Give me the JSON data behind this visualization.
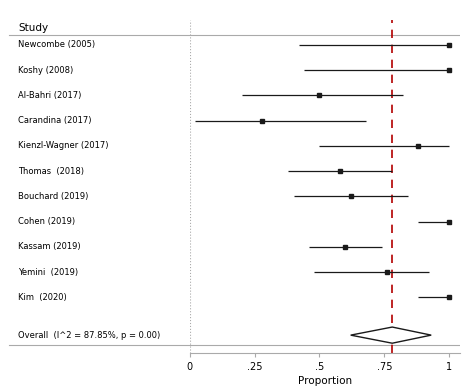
{
  "studies": [
    {
      "label": "Newcombe (2005)",
      "est": 1.0,
      "ci_low": 0.42,
      "ci_high": 1.0
    },
    {
      "label": "Koshy (2008)",
      "est": 1.0,
      "ci_low": 0.44,
      "ci_high": 1.0
    },
    {
      "label": "Al-Bahri (2017)",
      "est": 0.5,
      "ci_low": 0.2,
      "ci_high": 0.82
    },
    {
      "label": "Carandina (2017)",
      "est": 0.28,
      "ci_low": 0.02,
      "ci_high": 0.68
    },
    {
      "label": "Kienzl-Wagner (2017)",
      "est": 0.88,
      "ci_low": 0.5,
      "ci_high": 1.0
    },
    {
      "label": "Thomas  (2018)",
      "est": 0.58,
      "ci_low": 0.38,
      "ci_high": 0.78
    },
    {
      "label": "Bouchard (2019)",
      "est": 0.62,
      "ci_low": 0.4,
      "ci_high": 0.84
    },
    {
      "label": "Cohen (2019)",
      "est": 1.0,
      "ci_low": 0.88,
      "ci_high": 1.0
    },
    {
      "label": "Kassam (2019)",
      "est": 0.6,
      "ci_low": 0.46,
      "ci_high": 0.74
    },
    {
      "label": "Yemini  (2019)",
      "est": 0.76,
      "ci_low": 0.48,
      "ci_high": 0.92
    },
    {
      "label": "Kim  (2020)",
      "est": 1.0,
      "ci_low": 0.88,
      "ci_high": 1.0
    }
  ],
  "overall": {
    "label": "Overall  (I^2 = 87.85%, p = 0.00)",
    "est": 0.78,
    "ci_low": 0.62,
    "ci_high": 0.93
  },
  "ref_line": 0.78,
  "xlim": [
    0.0,
    1.04
  ],
  "xticks": [
    0,
    0.25,
    0.5,
    0.75,
    1.0
  ],
  "xtick_labels": [
    "0",
    ".25",
    ".5",
    ".75",
    "1"
  ],
  "xlabel": "Proportion",
  "header": "Study",
  "bg_color": "#ffffff",
  "marker_color": "#1a1a1a",
  "line_color": "#1a1a1a",
  "dashed_color": "#b30000",
  "diamond_facecolor": "#ffffff",
  "diamond_edgecolor": "#1a1a1a",
  "sep_line_color": "#aaaaaa",
  "dotted_line_color": "#aaaaaa"
}
